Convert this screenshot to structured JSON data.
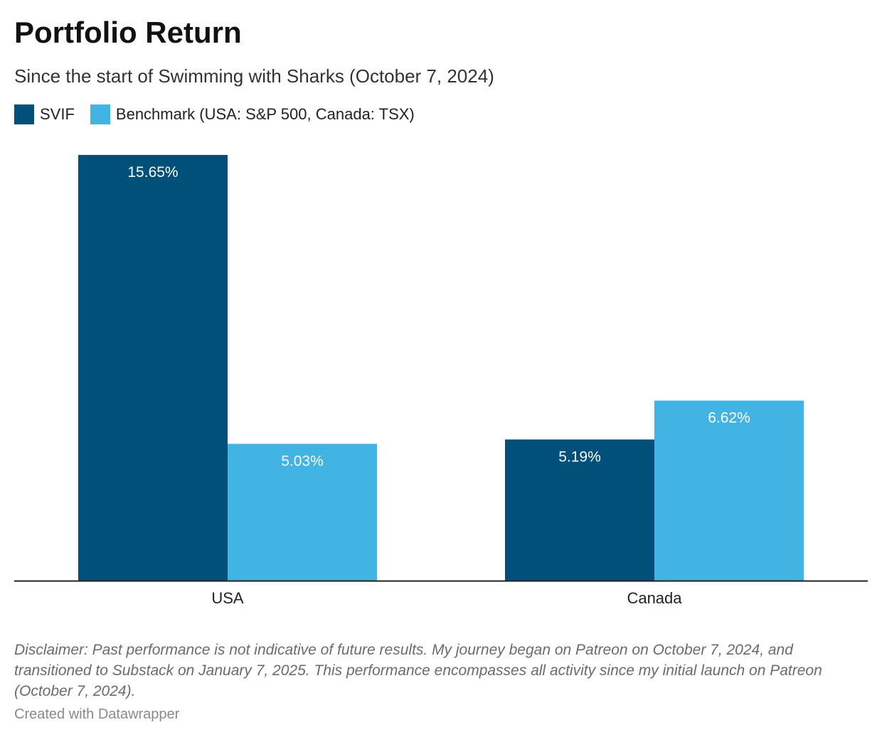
{
  "title": "Portfolio Return",
  "subtitle": "Since the start of Swimming with Sharks (October 7, 2024)",
  "legend": [
    {
      "label": "SVIF",
      "color": "#00507a"
    },
    {
      "label": "Benchmark (USA: S&P 500, Canada: TSX)",
      "color": "#41b4e3"
    }
  ],
  "chart_data": {
    "type": "bar",
    "categories": [
      "USA",
      "Canada"
    ],
    "series": [
      {
        "name": "SVIF",
        "values": [
          15.65,
          5.19
        ],
        "labels": [
          "15.65%",
          "5.19%"
        ],
        "color": "#00507a"
      },
      {
        "name": "Benchmark (USA: S&P 500, Canada: TSX)",
        "values": [
          5.03,
          6.62
        ],
        "labels": [
          "5.03%",
          "6.62%"
        ],
        "color": "#41b4e3"
      }
    ],
    "ylim": [
      0,
      15.65
    ],
    "grid": false,
    "legend_position": "top-left"
  },
  "footnote": "Disclaimer: Past performance is not indicative of future results. My journey began on Patreon on October 7, 2024, and transitioned to Substack on January 7, 2025. This performance encompasses all activity since my initial launch on Patreon (October 7, 2024).",
  "credit": "Created with Datawrapper"
}
